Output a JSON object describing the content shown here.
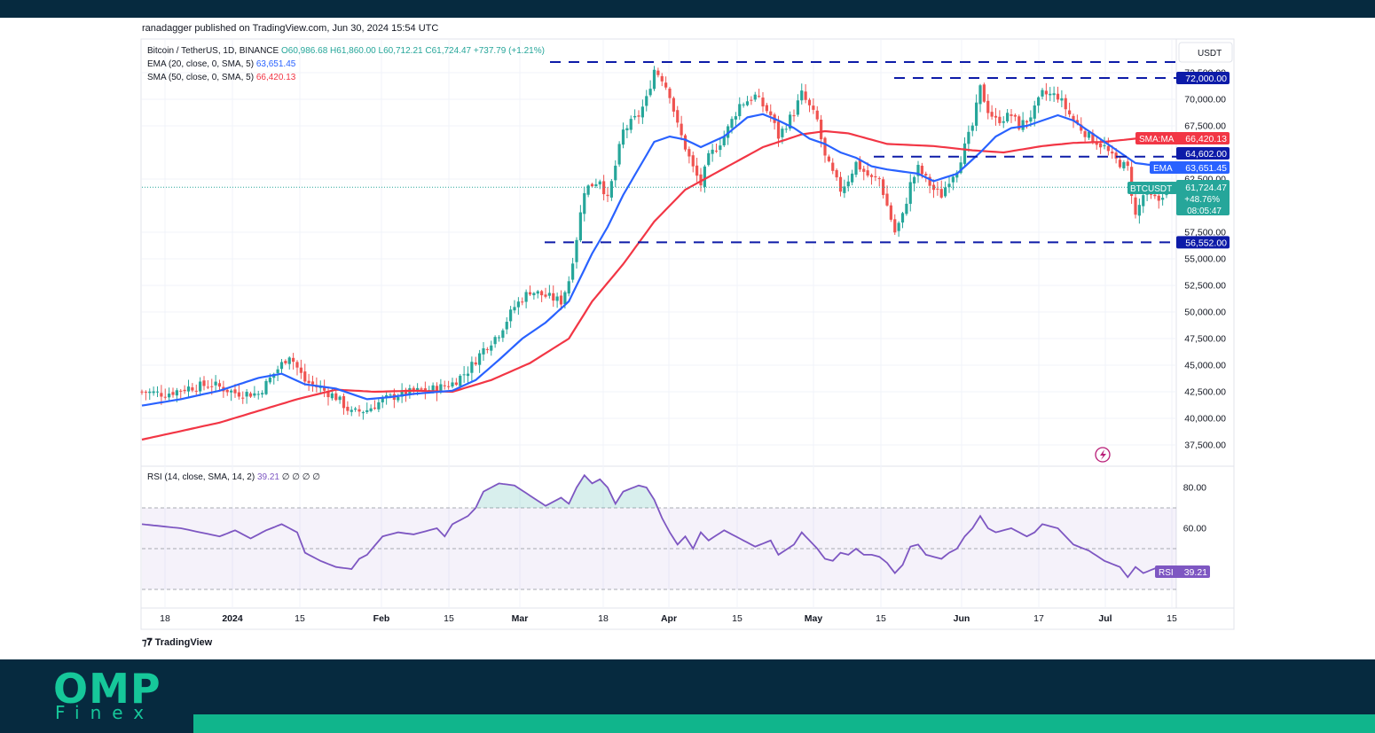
{
  "header": {
    "publisher": "ranadagger published on TradingView.com, Jun 30, 2024 15:54 UTC"
  },
  "legend": {
    "symbol": "Bitcoin / TetherUS, 1D, BINANCE",
    "open": "O60,986.68",
    "high": "H61,860.00",
    "low": "L60,712.21",
    "close": "C61,724.47",
    "change": "+737.79 (+1.21%)",
    "ema_label": "EMA (20, close, 0, SMA, 5)",
    "ema_value": "63,651.45",
    "sma_label": "SMA (50, close, 0, SMA, 5)",
    "sma_value": "66,420.13",
    "rsi_label": "RSI (14, close, SMA, 14, 2)",
    "rsi_value": "39.21",
    "rsi_extra": "∅ ∅ ∅ ∅"
  },
  "price_axis": {
    "currency": "USDT",
    "ticks": [
      "72,500.00",
      "70,000.00",
      "67,500.00",
      "62,500.00",
      "57,500.00",
      "55,000.00",
      "52,500.00",
      "50,000.00",
      "47,500.00",
      "45,000.00",
      "42,500.00",
      "40,000.00",
      "37,500.00"
    ],
    "tick_values": [
      72500,
      70000,
      67500,
      62500,
      57500,
      55000,
      52500,
      50000,
      47500,
      45000,
      42500,
      40000,
      37500
    ]
  },
  "tags": {
    "level_72000": "72,000.00",
    "sma_tag": "SMA:MA",
    "sma_tag_value": "66,420.13",
    "level_64602": "64,602.00",
    "ema_tag": "EMA",
    "ema_tag_value": "63,651.45",
    "symbol_tag": "BTCUSDT",
    "price_value": "61,724.47",
    "price_change": "+48.76%",
    "countdown": "08:05:47",
    "level_56552": "56,552.00",
    "rsi_tag": "RSI",
    "rsi_tag_value": "39.21"
  },
  "rsi_axis": {
    "ticks": [
      "80.00",
      "60.00"
    ],
    "tick_values": [
      80,
      60
    ]
  },
  "time_axis": {
    "labels": [
      "18",
      "2024",
      "15",
      "Feb",
      "15",
      "Mar",
      "18",
      "Apr",
      "15",
      "May",
      "15",
      "Jun",
      "17",
      "Jul",
      "15"
    ]
  },
  "brand": "TradingView",
  "footer_logo": {
    "top": "OMP",
    "bottom": "Finex"
  },
  "colors": {
    "up": "#26a69a",
    "down": "#ef5350",
    "ema": "#2962ff",
    "sma": "#f23645",
    "rsi": "#7e57c2",
    "level": "#0d1ba8",
    "footer_bg": "#062a3f",
    "footer_accent": "#10b58c"
  },
  "chart_data": {
    "type": "candlestick",
    "symbol": "BTCUSDT",
    "ylim": [
      36500,
      73700
    ],
    "horizontal_levels": [
      72000,
      64602,
      56552,
      73500
    ],
    "price_keypoints": [
      [
        0,
        42500
      ],
      [
        6,
        42300
      ],
      [
        12,
        42900
      ],
      [
        18,
        43200
      ],
      [
        24,
        42400
      ],
      [
        30,
        42300
      ],
      [
        34,
        44200
      ],
      [
        38,
        46000
      ],
      [
        42,
        43500
      ],
      [
        46,
        42800
      ],
      [
        50,
        42000
      ],
      [
        54,
        40500
      ],
      [
        58,
        40800
      ],
      [
        62,
        41700
      ],
      [
        66,
        42200
      ],
      [
        70,
        42500
      ],
      [
        76,
        42800
      ],
      [
        80,
        43300
      ],
      [
        84,
        44500
      ],
      [
        88,
        46500
      ],
      [
        92,
        48000
      ],
      [
        96,
        50500
      ],
      [
        100,
        52000
      ],
      [
        104,
        51500
      ],
      [
        108,
        51000
      ],
      [
        110,
        53000
      ],
      [
        112,
        57000
      ],
      [
        114,
        61500
      ],
      [
        118,
        62500
      ],
      [
        120,
        60500
      ],
      [
        124,
        67000
      ],
      [
        128,
        68500
      ],
      [
        130,
        70000
      ],
      [
        132,
        72800
      ],
      [
        134,
        72000
      ],
      [
        136,
        70500
      ],
      [
        138,
        67500
      ],
      [
        140,
        65500
      ],
      [
        142,
        63500
      ],
      [
        144,
        62000
      ],
      [
        146,
        64500
      ],
      [
        150,
        66500
      ],
      [
        154,
        69500
      ],
      [
        158,
        70300
      ],
      [
        162,
        68500
      ],
      [
        164,
        66500
      ],
      [
        168,
        68800
      ],
      [
        170,
        70500
      ],
      [
        174,
        68000
      ],
      [
        176,
        64500
      ],
      [
        178,
        63000
      ],
      [
        180,
        61500
      ],
      [
        182,
        62500
      ],
      [
        184,
        64000
      ],
      [
        186,
        63200
      ],
      [
        188,
        62500
      ],
      [
        190,
        62500
      ],
      [
        192,
        60000
      ],
      [
        194,
        57500
      ],
      [
        196,
        59000
      ],
      [
        198,
        62000
      ],
      [
        200,
        63500
      ],
      [
        202,
        62500
      ],
      [
        204,
        61500
      ],
      [
        206,
        61000
      ],
      [
        208,
        62500
      ],
      [
        210,
        63500
      ],
      [
        212,
        65500
      ],
      [
        214,
        67500
      ],
      [
        216,
        71000
      ],
      [
        218,
        69000
      ],
      [
        220,
        68000
      ],
      [
        224,
        68500
      ],
      [
        226,
        67500
      ],
      [
        228,
        68000
      ],
      [
        230,
        69000
      ],
      [
        232,
        70500
      ],
      [
        236,
        70300
      ],
      [
        240,
        68000
      ],
      [
        244,
        66500
      ],
      [
        248,
        65500
      ],
      [
        250,
        64500
      ],
      [
        254,
        63500
      ],
      [
        256,
        59000
      ],
      [
        258,
        61000
      ],
      [
        262,
        60500
      ],
      [
        264,
        61724
      ]
    ],
    "ema20_keypoints": [
      [
        0,
        41200
      ],
      [
        10,
        41800
      ],
      [
        20,
        42600
      ],
      [
        30,
        43800
      ],
      [
        36,
        44200
      ],
      [
        42,
        43200
      ],
      [
        50,
        42800
      ],
      [
        58,
        41800
      ],
      [
        64,
        42000
      ],
      [
        70,
        42300
      ],
      [
        80,
        42600
      ],
      [
        86,
        43600
      ],
      [
        92,
        45500
      ],
      [
        98,
        47500
      ],
      [
        104,
        49000
      ],
      [
        110,
        51000
      ],
      [
        116,
        55500
      ],
      [
        120,
        58000
      ],
      [
        124,
        61000
      ],
      [
        128,
        63500
      ],
      [
        132,
        66000
      ],
      [
        136,
        66500
      ],
      [
        140,
        66200
      ],
      [
        144,
        65500
      ],
      [
        150,
        66500
      ],
      [
        156,
        68300
      ],
      [
        160,
        68600
      ],
      [
        164,
        68000
      ],
      [
        168,
        67300
      ],
      [
        172,
        66300
      ],
      [
        176,
        65800
      ],
      [
        180,
        65000
      ],
      [
        184,
        64500
      ],
      [
        188,
        63700
      ],
      [
        192,
        63400
      ],
      [
        196,
        63200
      ],
      [
        200,
        63000
      ],
      [
        204,
        62300
      ],
      [
        210,
        63000
      ],
      [
        216,
        65000
      ],
      [
        220,
        66500
      ],
      [
        224,
        67300
      ],
      [
        228,
        67500
      ],
      [
        232,
        68000
      ],
      [
        236,
        68500
      ],
      [
        240,
        68000
      ],
      [
        244,
        67000
      ],
      [
        248,
        66000
      ],
      [
        252,
        65000
      ],
      [
        256,
        64000
      ],
      [
        264,
        63651
      ]
    ],
    "sma50_keypoints": [
      [
        0,
        38000
      ],
      [
        20,
        39600
      ],
      [
        40,
        41800
      ],
      [
        50,
        42700
      ],
      [
        60,
        42500
      ],
      [
        70,
        42600
      ],
      [
        80,
        42500
      ],
      [
        90,
        43600
      ],
      [
        100,
        45200
      ],
      [
        110,
        47500
      ],
      [
        116,
        51000
      ],
      [
        124,
        54500
      ],
      [
        132,
        58500
      ],
      [
        140,
        61500
      ],
      [
        150,
        63500
      ],
      [
        160,
        65500
      ],
      [
        170,
        66700
      ],
      [
        176,
        67000
      ],
      [
        182,
        66800
      ],
      [
        192,
        65800
      ],
      [
        204,
        65600
      ],
      [
        214,
        65200
      ],
      [
        222,
        65000
      ],
      [
        232,
        65600
      ],
      [
        240,
        65900
      ],
      [
        248,
        66000
      ],
      [
        256,
        66300
      ],
      [
        264,
        66420
      ]
    ],
    "rsi_keypoints": [
      [
        0,
        62
      ],
      [
        10,
        60
      ],
      [
        20,
        56
      ],
      [
        24,
        59
      ],
      [
        28,
        55
      ],
      [
        32,
        59
      ],
      [
        36,
        62
      ],
      [
        40,
        58
      ],
      [
        42,
        48
      ],
      [
        46,
        44
      ],
      [
        50,
        41
      ],
      [
        54,
        40
      ],
      [
        56,
        45
      ],
      [
        58,
        47
      ],
      [
        62,
        56
      ],
      [
        66,
        58
      ],
      [
        70,
        57
      ],
      [
        74,
        59
      ],
      [
        76,
        60
      ],
      [
        78,
        56
      ],
      [
        80,
        62
      ],
      [
        84,
        66
      ],
      [
        86,
        70
      ],
      [
        88,
        78
      ],
      [
        92,
        82
      ],
      [
        96,
        81
      ],
      [
        100,
        76
      ],
      [
        104,
        71
      ],
      [
        106,
        73
      ],
      [
        108,
        75
      ],
      [
        110,
        72
      ],
      [
        112,
        80
      ],
      [
        114,
        86
      ],
      [
        116,
        82
      ],
      [
        118,
        84
      ],
      [
        120,
        80
      ],
      [
        122,
        72
      ],
      [
        124,
        78
      ],
      [
        128,
        81
      ],
      [
        130,
        80
      ],
      [
        132,
        74
      ],
      [
        134,
        65
      ],
      [
        136,
        58
      ],
      [
        138,
        52
      ],
      [
        140,
        56
      ],
      [
        142,
        50
      ],
      [
        144,
        58
      ],
      [
        146,
        54
      ],
      [
        150,
        59
      ],
      [
        154,
        55
      ],
      [
        158,
        51
      ],
      [
        162,
        54
      ],
      [
        164,
        47
      ],
      [
        168,
        52
      ],
      [
        170,
        58
      ],
      [
        174,
        50
      ],
      [
        176,
        45
      ],
      [
        178,
        44
      ],
      [
        180,
        48
      ],
      [
        182,
        47
      ],
      [
        184,
        50
      ],
      [
        186,
        47
      ],
      [
        188,
        47
      ],
      [
        190,
        46
      ],
      [
        192,
        43
      ],
      [
        194,
        38
      ],
      [
        196,
        42
      ],
      [
        198,
        51
      ],
      [
        200,
        52
      ],
      [
        202,
        47
      ],
      [
        204,
        46
      ],
      [
        206,
        45
      ],
      [
        208,
        48
      ],
      [
        210,
        50
      ],
      [
        212,
        56
      ],
      [
        214,
        60
      ],
      [
        216,
        66
      ],
      [
        218,
        60
      ],
      [
        220,
        58
      ],
      [
        224,
        60
      ],
      [
        226,
        58
      ],
      [
        228,
        56
      ],
      [
        230,
        58
      ],
      [
        232,
        62
      ],
      [
        236,
        60
      ],
      [
        240,
        52
      ],
      [
        244,
        49
      ],
      [
        248,
        44
      ],
      [
        252,
        41
      ],
      [
        254,
        36
      ],
      [
        256,
        41
      ],
      [
        258,
        38
      ],
      [
        262,
        41
      ],
      [
        264,
        39.21
      ]
    ],
    "rsi_bands": {
      "upper": 70,
      "middle": 50,
      "lower": 30
    },
    "rsi_ylim": [
      25,
      92
    ],
    "n_bars": 265,
    "last": {
      "open": 60986.68,
      "high": 61860.0,
      "low": 60712.21,
      "close": 61724.47
    }
  }
}
